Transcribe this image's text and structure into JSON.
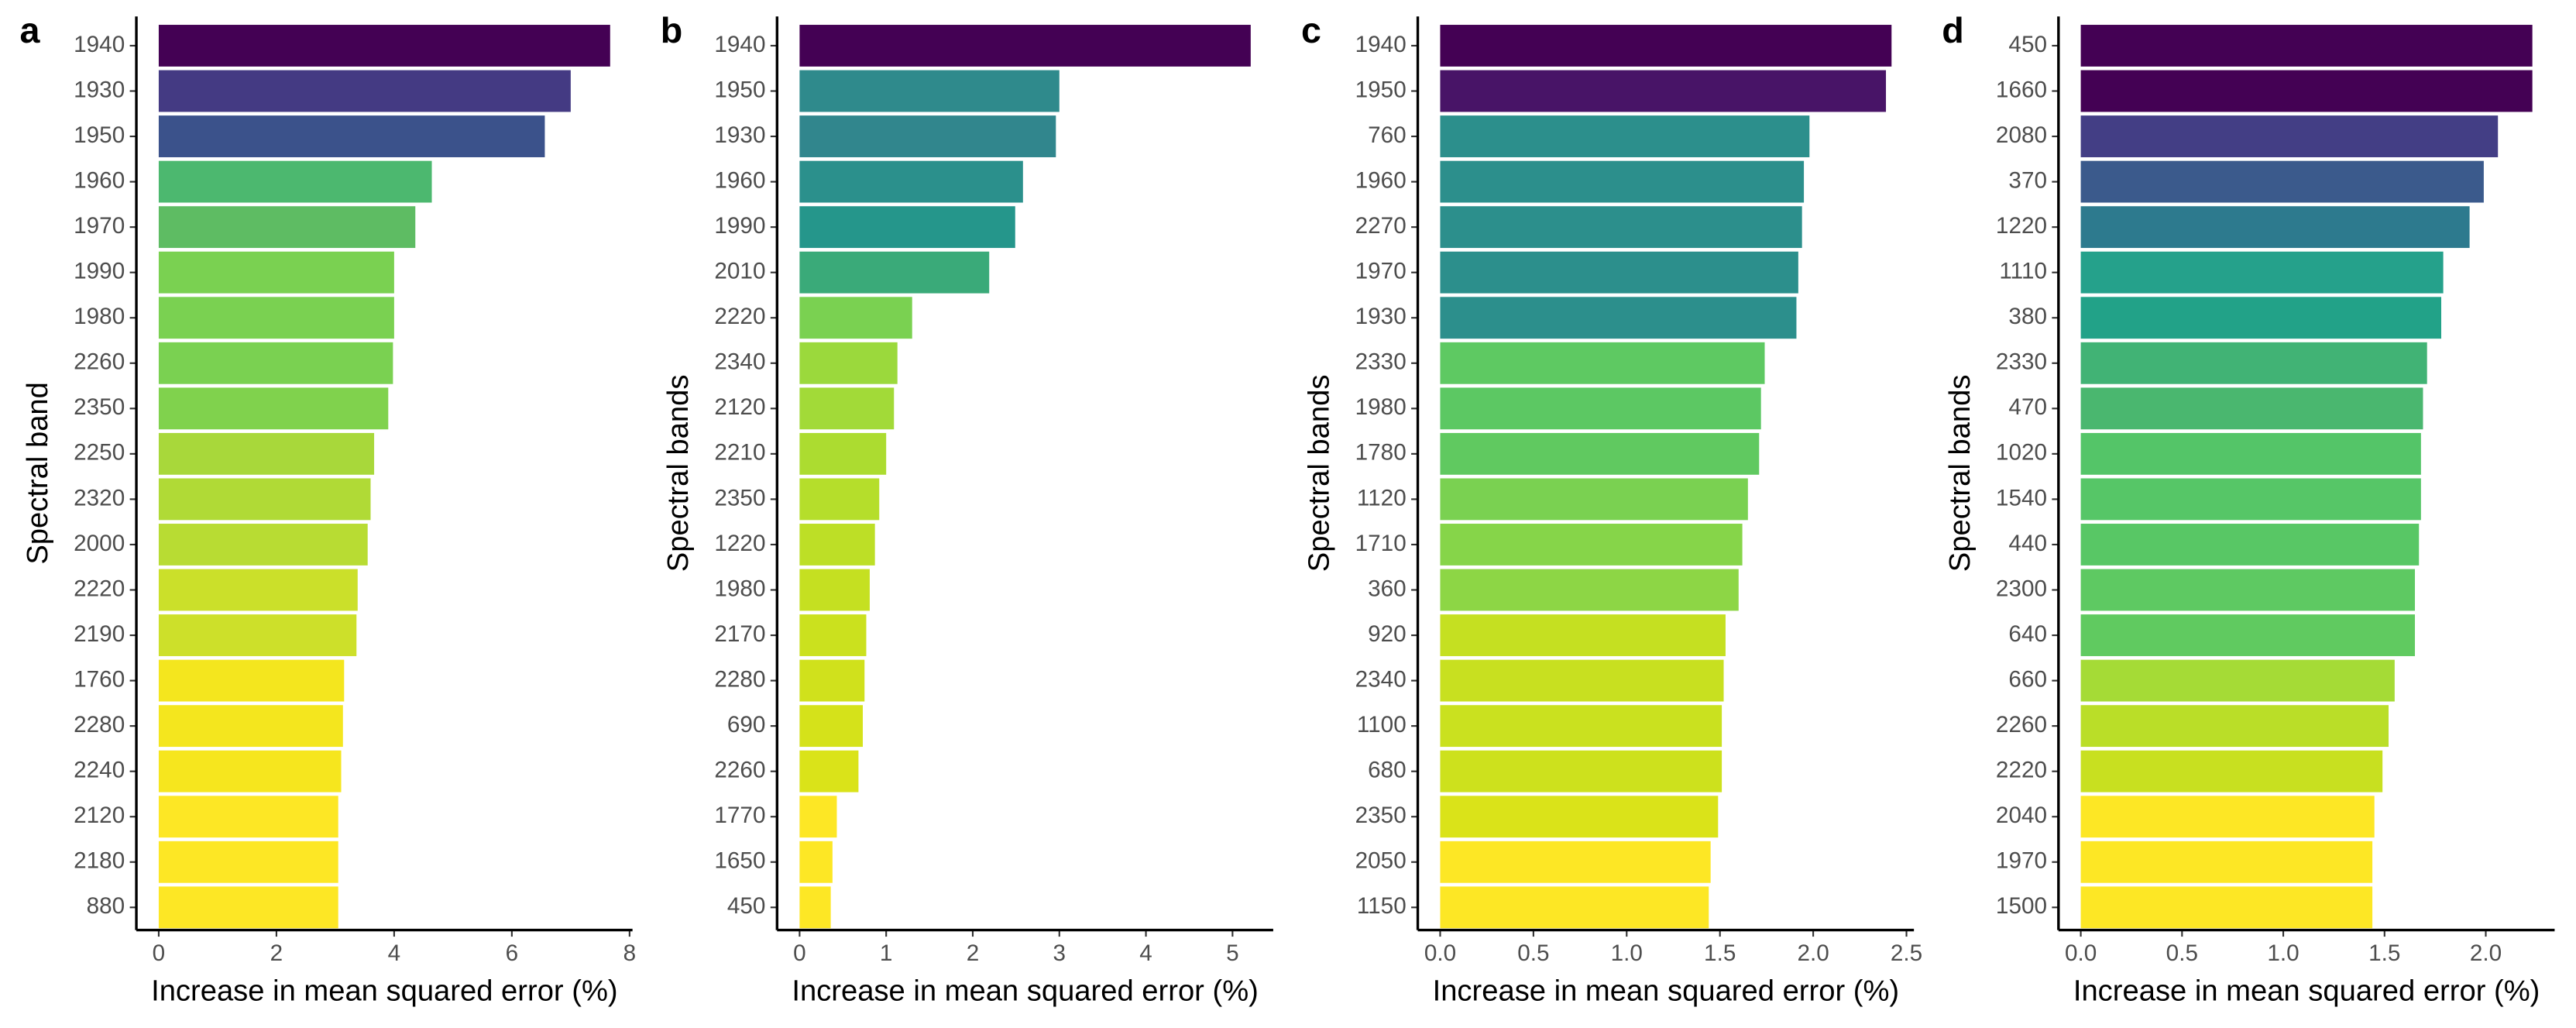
{
  "chart_data": [
    {
      "type": "bar",
      "orientation": "horizontal",
      "panel_label": "a",
      "xlabel": "Increase in mean squared error (%)",
      "ylabel": "Spectral band",
      "categories": [
        "1940",
        "1930",
        "1950",
        "1960",
        "1970",
        "1990",
        "1980",
        "2260",
        "2350",
        "2250",
        "2320",
        "2000",
        "2220",
        "2190",
        "1760",
        "2280",
        "2240",
        "2120",
        "2180",
        "880"
      ],
      "values": [
        7.67,
        7.0,
        6.56,
        4.64,
        4.36,
        4.0,
        4.0,
        3.98,
        3.9,
        3.66,
        3.6,
        3.55,
        3.38,
        3.36,
        3.15,
        3.13,
        3.1,
        3.05,
        3.05,
        3.05
      ],
      "colors": [
        "#440154",
        "#443a83",
        "#3b528b",
        "#4cb86f",
        "#5ebc63",
        "#7ad151",
        "#7ad151",
        "#7ad151",
        "#80d24d",
        "#a8d83a",
        "#b0da36",
        "#b8dc33",
        "#cbe02a",
        "#cde02a",
        "#f4e61e",
        "#f4e61e",
        "#f6e61e",
        "#fde725",
        "#fde725",
        "#fde725"
      ],
      "xlim": [
        -0.38,
        8.05
      ],
      "xticks": [
        0,
        2,
        4,
        6,
        8
      ]
    },
    {
      "type": "bar",
      "orientation": "horizontal",
      "panel_label": "b",
      "xlabel": "Increase in mean squared error (%)",
      "ylabel": "Spectral bands",
      "categories": [
        "1940",
        "1950",
        "1930",
        "1960",
        "1990",
        "2010",
        "2220",
        "2340",
        "2120",
        "2210",
        "2350",
        "1220",
        "1980",
        "2170",
        "2280",
        "690",
        "2260",
        "1770",
        "1650",
        "450"
      ],
      "values": [
        5.21,
        3.0,
        2.96,
        2.58,
        2.49,
        2.19,
        1.3,
        1.13,
        1.09,
        1.0,
        0.92,
        0.87,
        0.81,
        0.77,
        0.75,
        0.73,
        0.68,
        0.43,
        0.38,
        0.36
      ],
      "colors": [
        "#440154",
        "#2f8a8c",
        "#31868d",
        "#2b908c",
        "#25968b",
        "#3aaa79",
        "#7ad151",
        "#9bd93c",
        "#a2da38",
        "#acdc30",
        "#b5de2b",
        "#bddf26",
        "#c5e021",
        "#cbe11e",
        "#d0e11c",
        "#d5e21a",
        "#dae319",
        "#fde725",
        "#fde725",
        "#fde725"
      ],
      "xlim": [
        -0.26,
        5.47
      ],
      "xticks": [
        0,
        1,
        2,
        3,
        4,
        5
      ]
    },
    {
      "type": "bar",
      "orientation": "horizontal",
      "panel_label": "c",
      "xlabel": "Increase in mean squared error (%)",
      "ylabel": "Spectral bands",
      "categories": [
        "1940",
        "1950",
        "760",
        "1960",
        "2270",
        "1970",
        "1930",
        "2330",
        "1980",
        "1780",
        "1120",
        "1710",
        "360",
        "920",
        "2340",
        "1100",
        "680",
        "2350",
        "2050",
        "1150"
      ],
      "values": [
        2.42,
        2.39,
        1.98,
        1.95,
        1.94,
        1.92,
        1.91,
        1.74,
        1.72,
        1.71,
        1.65,
        1.62,
        1.6,
        1.53,
        1.52,
        1.51,
        1.51,
        1.49,
        1.45,
        1.44
      ],
      "colors": [
        "#440154",
        "#481467",
        "#2c8f8c",
        "#2c8f8c",
        "#2c8f8c",
        "#2c8f8c",
        "#2c8f8c",
        "#5ec962",
        "#5cc863",
        "#60c960",
        "#7ad151",
        "#86d549",
        "#8dd645",
        "#c5e021",
        "#c8e020",
        "#cae11f",
        "#cde11d",
        "#dae319",
        "#fde725",
        "#fde725"
      ],
      "xlim": [
        -0.12,
        2.54
      ],
      "xticks": [
        {
          "value": 0,
          "label": "0.0"
        },
        0.5,
        {
          "value": 1,
          "label": "1.0"
        },
        1.5,
        {
          "value": 2,
          "label": "2.0"
        },
        2.5
      ]
    },
    {
      "type": "bar",
      "orientation": "horizontal",
      "panel_label": "d",
      "xlabel": "Increase in mean squared error (%)",
      "ylabel": "Spectral bands",
      "categories": [
        "450",
        "1660",
        "2080",
        "370",
        "1220",
        "1110",
        "380",
        "2330",
        "470",
        "1020",
        "1540",
        "440",
        "2300",
        "640",
        "660",
        "2260",
        "2220",
        "2040",
        "1970",
        "1500"
      ],
      "values": [
        2.23,
        2.23,
        2.06,
        1.99,
        1.92,
        1.79,
        1.78,
        1.71,
        1.69,
        1.68,
        1.68,
        1.67,
        1.65,
        1.65,
        1.55,
        1.52,
        1.49,
        1.45,
        1.44,
        1.44
      ],
      "colors": [
        "#440154",
        "#440154",
        "#433e85",
        "#3b5a8c",
        "#2d7a8e",
        "#25a18b",
        "#22a288",
        "#41b375",
        "#4ab76f",
        "#54c568",
        "#56c667",
        "#58c765",
        "#5ec962",
        "#60ca60",
        "#a5db36",
        "#bade28",
        "#c8e020",
        "#fde725",
        "#fde725",
        "#fde725"
      ],
      "xlim": [
        -0.11,
        2.34
      ],
      "xticks": [
        {
          "value": 0,
          "label": "0.0"
        },
        0.5,
        {
          "value": 1,
          "label": "1.0"
        },
        1.5,
        {
          "value": 2,
          "label": "2.0"
        }
      ]
    }
  ]
}
